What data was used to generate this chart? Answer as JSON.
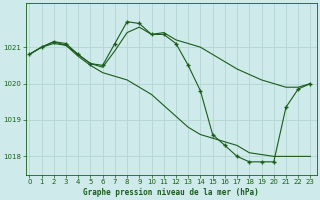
{
  "title": "Graphe pression niveau de la mer (hPa)",
  "bg_color": "#ceeaea",
  "grid_color": "#b8d8d8",
  "line_color": "#1a5c1a",
  "x_min": 0,
  "x_max": 23,
  "y_min": 1017.5,
  "y_max": 1022.2,
  "yticks": [
    1018,
    1019,
    1020,
    1021
  ],
  "xticks": [
    0,
    1,
    2,
    3,
    4,
    5,
    6,
    7,
    8,
    9,
    10,
    11,
    12,
    13,
    14,
    15,
    16,
    17,
    18,
    19,
    20,
    21,
    22,
    23
  ],
  "series": [
    {
      "x": [
        0,
        1,
        2,
        3,
        4,
        5,
        6,
        7,
        8,
        9,
        10,
        11,
        12,
        13,
        14,
        15,
        16,
        17,
        18,
        19,
        20,
        21,
        22,
        23
      ],
      "y": [
        1020.8,
        1021.0,
        1021.15,
        1021.05,
        1020.75,
        1020.5,
        1020.3,
        1020.2,
        1020.1,
        1019.9,
        1019.7,
        1019.4,
        1019.1,
        1018.8,
        1018.6,
        1018.5,
        1018.4,
        1018.3,
        1018.1,
        1018.05,
        1018.0,
        1018.0,
        1018.0,
        1018.0
      ],
      "has_markers": false
    },
    {
      "x": [
        0,
        1,
        2,
        3,
        4,
        5,
        6,
        7,
        8,
        9,
        10,
        11,
        12,
        13,
        14,
        15,
        16,
        17,
        18,
        19,
        20,
        21,
        22,
        23
      ],
      "y": [
        1020.8,
        1021.0,
        1021.15,
        1021.1,
        1020.8,
        1020.55,
        1020.5,
        1021.1,
        1021.7,
        1021.65,
        1021.35,
        1021.35,
        1021.1,
        1020.5,
        1019.8,
        1018.6,
        1018.3,
        1018.0,
        1017.85,
        1017.85,
        1017.85,
        1019.35,
        1019.85,
        1020.0
      ],
      "has_markers": true
    },
    {
      "x": [
        0,
        1,
        2,
        3,
        4,
        5,
        6,
        7,
        8,
        9,
        10,
        11,
        12,
        13,
        14,
        15,
        16,
        17,
        18,
        19,
        20,
        21,
        22,
        23
      ],
      "y": [
        1020.8,
        1021.0,
        1021.1,
        1021.05,
        1020.8,
        1020.55,
        1020.45,
        1020.9,
        1021.4,
        1021.55,
        1021.35,
        1021.4,
        1021.2,
        1021.1,
        1021.0,
        1020.8,
        1020.6,
        1020.4,
        1020.25,
        1020.1,
        1020.0,
        1019.9,
        1019.9,
        1020.0
      ],
      "has_markers": false
    }
  ]
}
